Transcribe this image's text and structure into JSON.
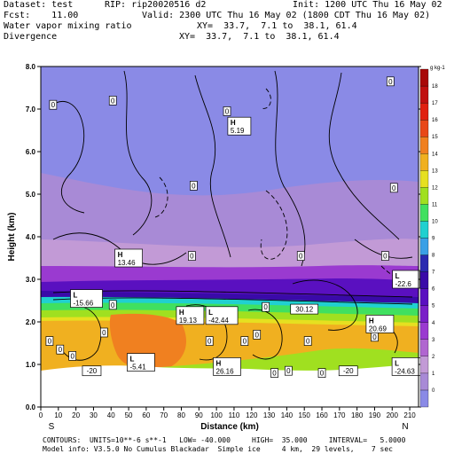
{
  "header": {
    "dataset": "Dataset: test",
    "rip": "RIP: rip20020516 d2",
    "init": "Init: 1200 UTC Thu 16 May 02",
    "fcst": "Fcst:    11.00",
    "valid": "Valid: 2300 UTC Thu 16 May 02 (1800 CDT Thu 16 May 02)",
    "field1": "Water vapor mixing ratio",
    "xy1": "XY=  33.7,  7.1 to  38.1, 61.4",
    "field2": "Divergence",
    "xy2": "XY=  33.7,  7.1 to  38.1, 61.4"
  },
  "footer": {
    "contours": "CONTOURS:  UNITS=10**-6 s**-1   LOW= -40.000     HIGH=  35.000     INTERVAL=   5.0000",
    "model": "Model info: V3.5.0 No Cumulus Blackadar  Simple ice     4 km,  29 levels,    7 sec"
  },
  "chart_data": {
    "type": "heatmap",
    "title": "Water vapor mixing ratio",
    "xlabel": "Distance (km)",
    "ylabel": "Height (km)",
    "xlim": [
      0,
      215
    ],
    "ylim": [
      0,
      8
    ],
    "x_ticks": [
      "0",
      "10",
      "20",
      "30",
      "40",
      "50",
      "60",
      "70",
      "80",
      "90",
      "100",
      "110",
      "120",
      "130",
      "140",
      "150",
      "160",
      "170",
      "180",
      "190",
      "200",
      "210"
    ],
    "y_ticks": [
      "0.0",
      "1.0",
      "2.0",
      "3.0",
      "4.0",
      "5.0",
      "6.0",
      "7.0",
      "8.0"
    ],
    "x_end_labels": {
      "left": "S",
      "right": "N"
    },
    "colorbar": {
      "unit": "g kg-1",
      "levels": [
        "0",
        "1",
        "2",
        "3",
        "4",
        "5",
        "6",
        "7",
        "8",
        "9",
        "10",
        "11",
        "12",
        "13",
        "14",
        "15",
        "16",
        "17",
        "18"
      ],
      "colors": [
        "#8a8ae6",
        "#a88ad6",
        "#c29ad6",
        "#b066d0",
        "#9a3ad0",
        "#7a20c8",
        "#5a10c0",
        "#3a0aa8",
        "#2a2ab0",
        "#3aa0e6",
        "#20d0d0",
        "#40e060",
        "#a0e020",
        "#e6e020",
        "#f0b020",
        "#f08020",
        "#e84818",
        "#e02010",
        "#c01010",
        "#a80808"
      ]
    },
    "labels": [
      {
        "text": "H",
        "value": "5.19",
        "x": 113,
        "y": 6.6
      },
      {
        "text": "H",
        "value": "13.46",
        "x": 50,
        "y": 3.5
      },
      {
        "text": "L",
        "value": "-15.66",
        "x": 26,
        "y": 2.55
      },
      {
        "text": "H",
        "value": "19.13",
        "x": 85,
        "y": 2.15
      },
      {
        "text": "L",
        "value": "-42.44",
        "x": 103,
        "y": 2.15
      },
      {
        "text": "",
        "value": "30.12",
        "x": 150,
        "y": 2.3
      },
      {
        "text": "L",
        "value": "-22.6",
        "x": 208,
        "y": 3.0
      },
      {
        "text": "H",
        "value": "20.69",
        "x": 193,
        "y": 1.95
      },
      {
        "text": "L",
        "value": "-5.41",
        "x": 57,
        "y": 1.05
      },
      {
        "text": "",
        "value": "-20",
        "x": 29,
        "y": 0.85
      },
      {
        "text": "H",
        "value": "26.16",
        "x": 106,
        "y": 0.95
      },
      {
        "text": "",
        "value": "-20",
        "x": 175,
        "y": 0.85
      },
      {
        "text": "L",
        "value": "-24.63",
        "x": 209,
        "y": 0.95
      }
    ],
    "zeros": [
      {
        "x": 7,
        "y": 7.1
      },
      {
        "x": 41,
        "y": 7.2
      },
      {
        "x": 106,
        "y": 6.95
      },
      {
        "x": 199,
        "y": 7.65
      },
      {
        "x": 201,
        "y": 5.15
      },
      {
        "x": 87,
        "y": 5.2
      },
      {
        "x": 86,
        "y": 3.55
      },
      {
        "x": 148,
        "y": 3.55
      },
      {
        "x": 196,
        "y": 3.55
      },
      {
        "x": 41,
        "y": 2.4
      },
      {
        "x": 11,
        "y": 1.35
      },
      {
        "x": 123,
        "y": 1.7
      },
      {
        "x": 190,
        "y": 1.65
      },
      {
        "x": 36,
        "y": 1.75
      },
      {
        "x": 5,
        "y": 1.55
      },
      {
        "x": 128,
        "y": 2.35
      },
      {
        "x": 96,
        "y": 1.55
      },
      {
        "x": 116,
        "y": 1.55
      },
      {
        "x": 152,
        "y": 1.55
      },
      {
        "x": 133,
        "y": 0.8
      },
      {
        "x": 141,
        "y": 0.85
      },
      {
        "x": 160,
        "y": 0.8
      },
      {
        "x": 18,
        "y": 1.2
      }
    ]
  }
}
